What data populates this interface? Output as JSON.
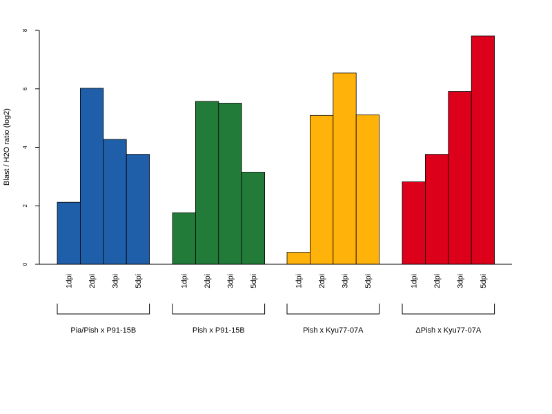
{
  "chart_data": {
    "type": "bar",
    "ylabel": "Blast / H2O ratio (log2)",
    "ylim": [
      0,
      8
    ],
    "yticks": [
      0,
      2,
      4,
      6,
      8
    ],
    "grid": false,
    "groups": [
      {
        "name": "Pia/Pish x P91-15B",
        "color": "#1f5ea8",
        "categories": [
          "1dpi",
          "2dpi",
          "3dpi",
          "5dpi"
        ],
        "values": [
          2.12,
          6.02,
          4.27,
          3.76
        ]
      },
      {
        "name": "Pish x P91-15B",
        "color": "#237b39",
        "categories": [
          "1dpi",
          "2dpi",
          "3dpi",
          "5dpi"
        ],
        "values": [
          1.76,
          5.57,
          5.51,
          3.15
        ]
      },
      {
        "name": "Pish x Kyu77-07A",
        "color": "#ffb20a",
        "categories": [
          "1dpi",
          "2dpi",
          "3dpi",
          "5dpi"
        ],
        "values": [
          0.41,
          5.09,
          6.54,
          5.11
        ]
      },
      {
        "name": "ΔPish x Kyu77-07A",
        "color": "#dc001b",
        "categories": [
          "1dpi",
          "2dpi",
          "3dpi",
          "5dpi"
        ],
        "values": [
          2.82,
          3.76,
          5.91,
          7.81
        ]
      }
    ]
  }
}
